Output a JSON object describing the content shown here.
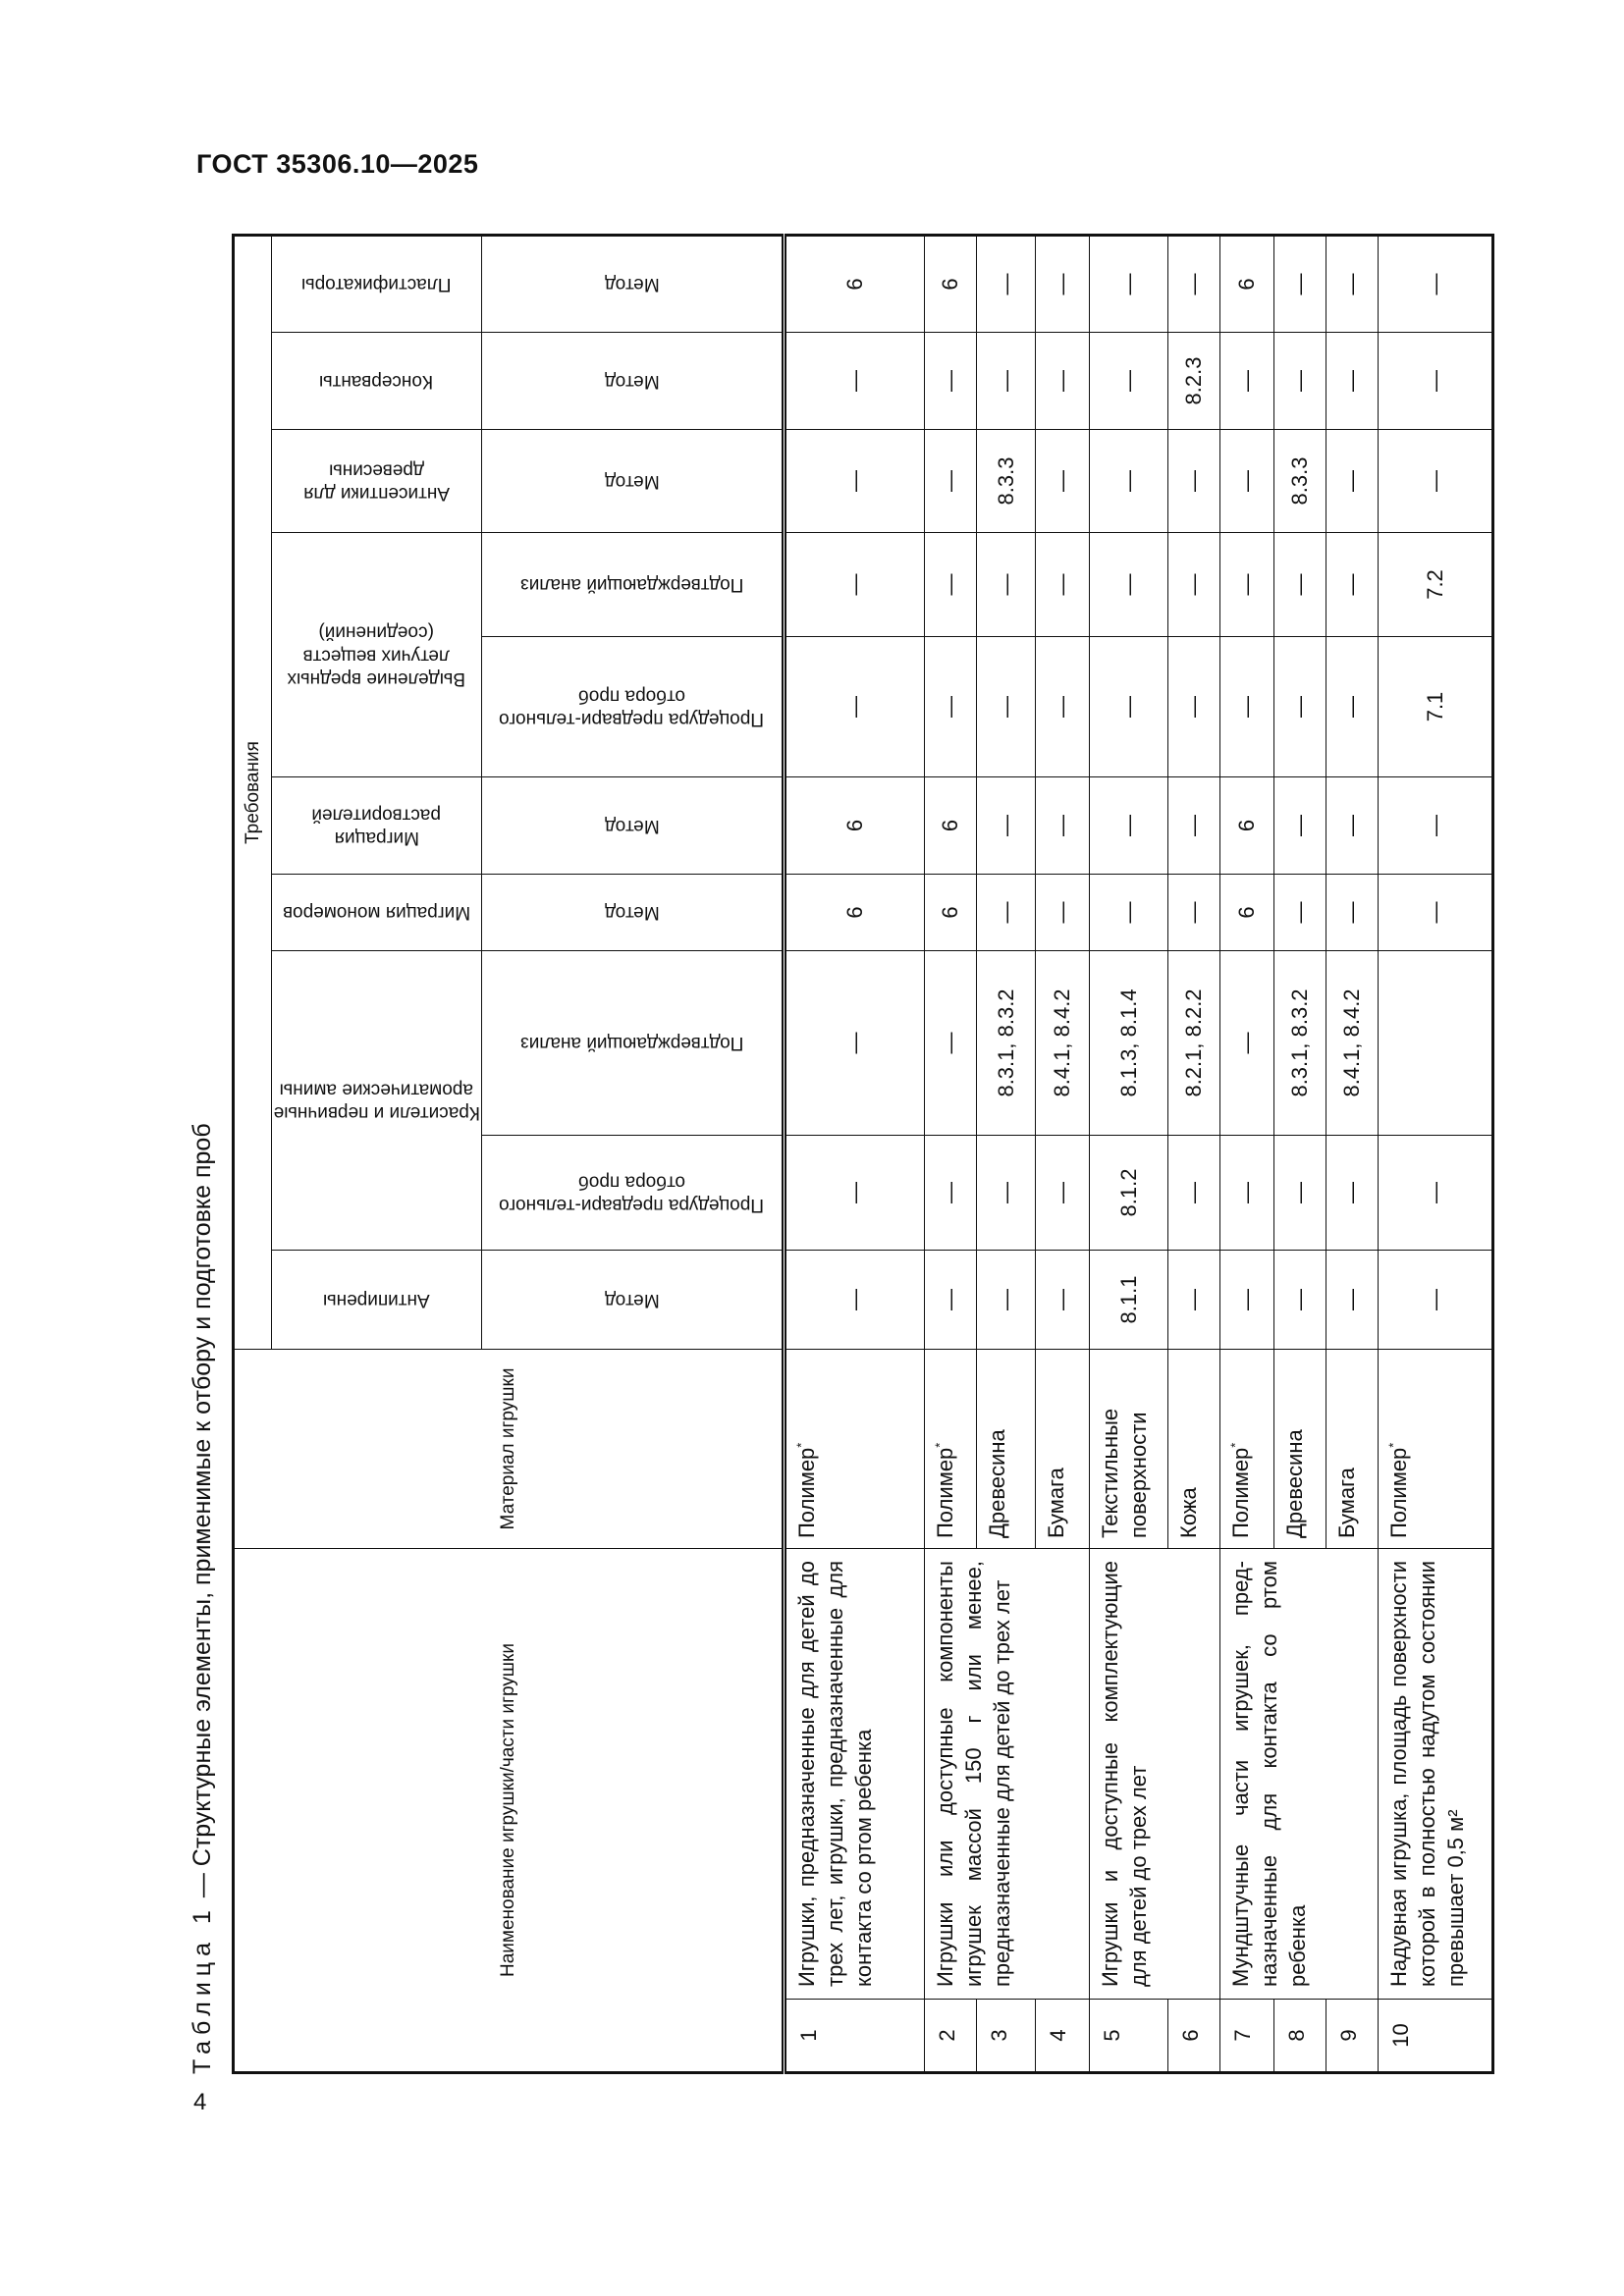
{
  "header": {
    "doc_id": "ГОСТ 35306.10—2025",
    "page_number": "4"
  },
  "table": {
    "caption_label": "Таблица 1",
    "caption_text": " — Структурные элементы, применимые к отбору и подготовке проб",
    "name_header": "Наименование игрушки/части игрушки",
    "material_header": "Материал игрушки",
    "requirements_header": "Требования",
    "groups": [
      {
        "label": "Антипирены",
        "subs": [
          "Метод"
        ]
      },
      {
        "label": "Красители и первичные ароматические амины",
        "subs": [
          "Процедура предвари-тельного отбора проб",
          "Подтверждающий анализ"
        ]
      },
      {
        "label": "Миграция мономеров",
        "subs": [
          "Метод"
        ]
      },
      {
        "label": "Миграция растворителей",
        "subs": [
          "Метод"
        ]
      },
      {
        "label": "Выделение вредных летучих веществ (соединений)",
        "subs": [
          "Процедура предвари-тельного отбора проб",
          "Подтверждающий анализ"
        ]
      },
      {
        "label": "Антисептики для древесины",
        "subs": [
          "Метод"
        ]
      },
      {
        "label": "Консерванты",
        "subs": [
          "Метод"
        ]
      },
      {
        "label": "Пластификаторы",
        "subs": [
          "Метод"
        ]
      }
    ],
    "rows": [
      {
        "number": "1",
        "name": "Игрушки, предназначенные для детей до трех лет, игрушки, пред­назначенные для контакта со ртом ребенка",
        "material": "Полимер",
        "material_note": "*",
        "values": [
          "—",
          "—",
          "—",
          "6",
          "6",
          "—",
          "—",
          "—",
          "—",
          "6"
        ]
      },
      {
        "number": "2",
        "name": "Игрушки или доступные компонен­ты игрушек массой 150 г или ме­нее, предназначенные для детей до трех лет",
        "material": "Полимер",
        "material_note": "*",
        "values": [
          "—",
          "—",
          "—",
          "6",
          "6",
          "—",
          "—",
          "—",
          "—",
          "6"
        ]
      },
      {
        "number": "3",
        "material": "Древесина",
        "values": [
          "—",
          "—",
          "8.3.1, 8.3.2",
          "—",
          "—",
          "—",
          "—",
          "8.3.3",
          "—",
          "—"
        ]
      },
      {
        "number": "4",
        "material": "Бумага",
        "values": [
          "—",
          "—",
          "8.4.1, 8.4.2",
          "—",
          "—",
          "—",
          "—",
          "—",
          "—",
          "—"
        ]
      },
      {
        "number": "5",
        "name": "Игрушки и доступные комплектую­щие для детей до трех лет",
        "material": "Текстильные поверхности",
        "values": [
          "8.1.1",
          "8.1.2",
          "8.1.3, 8.1.4",
          "—",
          "—",
          "—",
          "—",
          "—",
          "—",
          "—"
        ]
      },
      {
        "number": "6",
        "material": "Кожа",
        "values": [
          "—",
          "—",
          "8.2.1, 8.2.2",
          "—",
          "—",
          "—",
          "—",
          "—",
          "8.2.3",
          "—"
        ]
      },
      {
        "number": "7",
        "name": "Мундштучные части игрушек, пред­назначенные для контакта со ртом ребенка",
        "material": "Полимер",
        "material_note": "*",
        "values": [
          "—",
          "—",
          "—",
          "6",
          "6",
          "—",
          "—",
          "—",
          "—",
          "6"
        ]
      },
      {
        "number": "8",
        "material": "Древесина",
        "values": [
          "—",
          "—",
          "8.3.1, 8.3.2",
          "—",
          "—",
          "—",
          "—",
          "8.3.3",
          "—",
          "—"
        ]
      },
      {
        "number": "9",
        "material": "Бумага",
        "values": [
          "—",
          "—",
          "8.4.1, 8.4.2",
          "—",
          "—",
          "—",
          "—",
          "—",
          "—",
          "—"
        ]
      },
      {
        "number": "10",
        "name": "Надувная игрушка, площадь по­верхности которой в полностью на­дутом состоянии превышает 0,5 м²",
        "material": "Полимер",
        "material_note": "*",
        "values": [
          "—",
          "—",
          "",
          "—",
          "—",
          "7.1",
          "7.2",
          "—",
          "—",
          "—"
        ]
      }
    ]
  }
}
